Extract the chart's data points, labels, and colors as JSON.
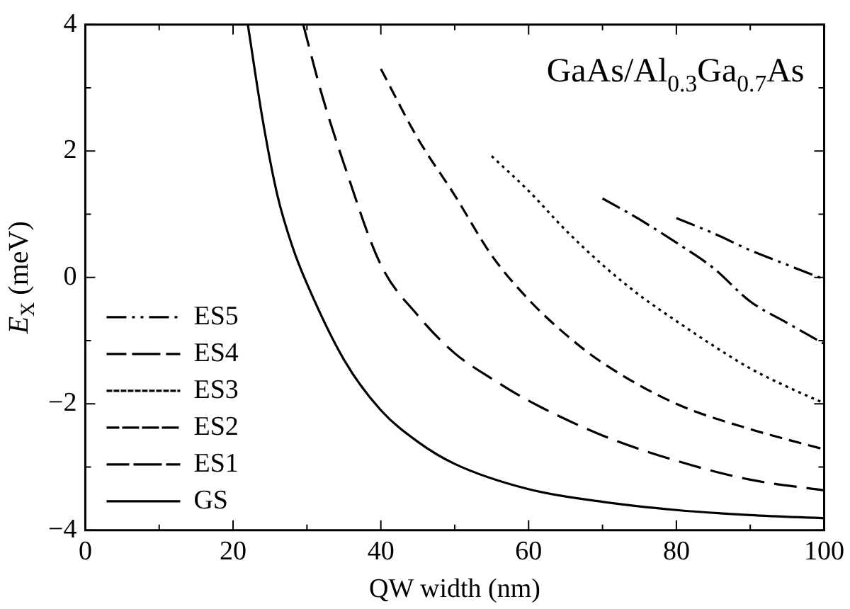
{
  "chart_data": {
    "type": "line",
    "xlabel": "QW width (nm)",
    "ylabel": "E$_{X}$ (meV)",
    "annotations": [
      "GaAs/Al$_{0.3}$Ga$_{0.7}$As"
    ],
    "xlim": [
      0,
      100
    ],
    "ylim": [
      -4,
      4
    ],
    "xticks": [
      0,
      {
        "value": 10,
        "label": null
      },
      20,
      {
        "value": 30,
        "label": null
      },
      40,
      {
        "value": 50,
        "label": null
      },
      60,
      {
        "value": 70,
        "label": null
      },
      80,
      {
        "value": 90,
        "label": null
      },
      100
    ],
    "yticks": [
      -4,
      {
        "value": -3,
        "label": null
      },
      -2,
      {
        "value": -1,
        "label": null
      },
      0,
      {
        "value": 1,
        "label": null
      },
      2,
      {
        "value": 3,
        "label": null
      },
      4
    ],
    "grid": false,
    "legend": "bottom left",
    "marker": "none",
    "series": [
      {
        "name": "ES5",
        "color": "#000000",
        "line_style": "dashdotdot",
        "x": [
          80,
          85,
          90,
          95,
          100
        ],
        "values": [
          0.94,
          0.7,
          0.43,
          0.2,
          -0.03
        ]
      },
      {
        "name": "ES4",
        "color": "#000000",
        "line_style": "dashdot",
        "x": [
          70,
          75,
          80,
          85,
          90,
          95,
          100
        ],
        "values": [
          1.25,
          0.92,
          0.55,
          0.15,
          -0.38,
          -0.72,
          -1.05
        ]
      },
      {
        "name": "ES3",
        "color": "#000000",
        "line_style": "dotted",
        "x": [
          55,
          60,
          65,
          70,
          75,
          80,
          85,
          90,
          95,
          100
        ],
        "values": [
          1.92,
          1.37,
          0.75,
          0.2,
          -0.28,
          -0.69,
          -1.08,
          -1.44,
          -1.73,
          -1.99
        ]
      },
      {
        "name": "ES2",
        "color": "#000000",
        "line_style": "dashed",
        "x": [
          40,
          45,
          50,
          55,
          60,
          65,
          70,
          80,
          90,
          100
        ],
        "values": [
          3.3,
          2.2,
          1.3,
          0.35,
          -0.35,
          -0.9,
          -1.35,
          -2.0,
          -2.4,
          -2.72
        ]
      },
      {
        "name": "ES1",
        "color": "#000000",
        "line_style": "longdash",
        "x": [
          29.5,
          32,
          35,
          40,
          45,
          50,
          55,
          60,
          70,
          80,
          90,
          100
        ],
        "values": [
          4,
          2.9,
          1.8,
          0.2,
          -0.6,
          -1.2,
          -1.6,
          -1.95,
          -2.5,
          -2.9,
          -3.2,
          -3.37
        ]
      },
      {
        "name": "GS",
        "color": "#000000",
        "line_style": "solid",
        "x": [
          22,
          24,
          26,
          28,
          30,
          35,
          40,
          45,
          50,
          60,
          70,
          80,
          90,
          100
        ],
        "values": [
          4,
          2.5,
          1.3,
          0.5,
          -0.1,
          -1.3,
          -2.1,
          -2.6,
          -2.95,
          -3.35,
          -3.55,
          -3.68,
          -3.76,
          -3.81
        ]
      }
    ]
  }
}
